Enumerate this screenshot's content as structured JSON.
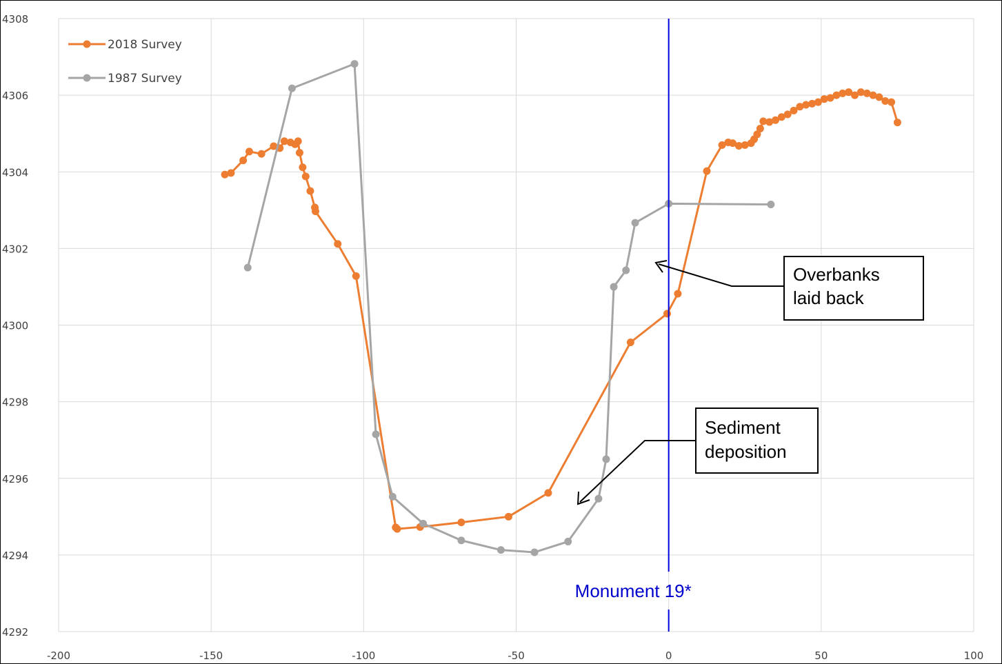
{
  "chart_data": {
    "type": "scatter",
    "title": "",
    "xlabel": "",
    "ylabel": "",
    "xlim": [
      -200,
      100
    ],
    "ylim": [
      4292,
      4308
    ],
    "x_ticks": [
      "-200",
      "-150",
      "-100",
      "-50",
      "0",
      "50",
      "100"
    ],
    "y_ticks": [
      "4292",
      "4294",
      "4296",
      "4298",
      "4300",
      "4302",
      "4304",
      "4306",
      "4308"
    ],
    "grid": true,
    "legend_position": "top-left",
    "series": [
      {
        "name": "2018 Survey",
        "color": "#ED7D31",
        "points": [
          [
            -145.5,
            4303.93
          ],
          [
            -143.5,
            4303.97
          ],
          [
            -139.5,
            4304.3
          ],
          [
            -137.5,
            4304.53
          ],
          [
            -133.5,
            4304.47
          ],
          [
            -129.5,
            4304.67
          ],
          [
            -127.5,
            4304.62
          ],
          [
            -126,
            4304.8
          ],
          [
            -124,
            4304.77
          ],
          [
            -122.5,
            4304.72
          ],
          [
            -121.5,
            4304.8
          ],
          [
            -121,
            4304.5
          ],
          [
            -120,
            4304.12
          ],
          [
            -119,
            4303.88
          ],
          [
            -117.5,
            4303.5
          ],
          [
            -116,
            4303.07
          ],
          [
            -115.8,
            4302.97
          ],
          [
            -108.5,
            4302.12
          ],
          [
            -102.5,
            4301.28
          ],
          [
            -89.5,
            4294.72
          ],
          [
            -89,
            4294.68
          ],
          [
            -81.5,
            4294.73
          ],
          [
            -68,
            4294.85
          ],
          [
            -52.5,
            4295.0
          ],
          [
            -39.5,
            4295.62
          ],
          [
            -12.5,
            4299.55
          ],
          [
            -0.5,
            4300.3
          ],
          [
            3,
            4300.82
          ],
          [
            12.5,
            4304.02
          ],
          [
            17.5,
            4304.7
          ],
          [
            19.5,
            4304.77
          ],
          [
            21,
            4304.75
          ],
          [
            23,
            4304.68
          ],
          [
            25,
            4304.7
          ],
          [
            27,
            4304.75
          ],
          [
            28,
            4304.85
          ],
          [
            29,
            4304.98
          ],
          [
            30,
            4305.13
          ],
          [
            31,
            4305.32
          ],
          [
            33,
            4305.3
          ],
          [
            35,
            4305.35
          ],
          [
            37,
            4305.43
          ],
          [
            39,
            4305.5
          ],
          [
            41,
            4305.6
          ],
          [
            43,
            4305.7
          ],
          [
            45,
            4305.75
          ],
          [
            47,
            4305.78
          ],
          [
            49,
            4305.82
          ],
          [
            51,
            4305.9
          ],
          [
            53,
            4305.93
          ],
          [
            55,
            4306.0
          ],
          [
            57,
            4306.05
          ],
          [
            59,
            4306.08
          ],
          [
            61,
            4306.0
          ],
          [
            63,
            4306.08
          ],
          [
            65,
            4306.05
          ],
          [
            67,
            4306.0
          ],
          [
            69,
            4305.95
          ],
          [
            71,
            4305.85
          ],
          [
            73,
            4305.82
          ],
          [
            75,
            4305.29
          ]
        ]
      },
      {
        "name": "1987 Survey",
        "color": "#A5A5A5",
        "points": [
          [
            -138,
            4301.5
          ],
          [
            -123.5,
            4306.18
          ],
          [
            -103,
            4306.82
          ],
          [
            -96,
            4297.15
          ],
          [
            -90.5,
            4295.52
          ],
          [
            -80.5,
            4294.82
          ],
          [
            -68,
            4294.38
          ],
          [
            -55,
            4294.13
          ],
          [
            -44,
            4294.07
          ],
          [
            -33,
            4294.35
          ],
          [
            -23,
            4295.47
          ],
          [
            -20.5,
            4296.5
          ],
          [
            -18,
            4301.0
          ],
          [
            -14,
            4301.43
          ],
          [
            -11,
            4302.67
          ],
          [
            0,
            4303.17
          ],
          [
            33.5,
            4303.15
          ]
        ]
      }
    ],
    "annotations": [
      {
        "id": "overbanks",
        "lines": [
          "Overbanks",
          "laid back"
        ]
      },
      {
        "id": "sediment",
        "lines": [
          "Sediment",
          "deposition"
        ]
      },
      {
        "id": "monument",
        "text": "Monument 19*",
        "x": 0
      }
    ]
  }
}
